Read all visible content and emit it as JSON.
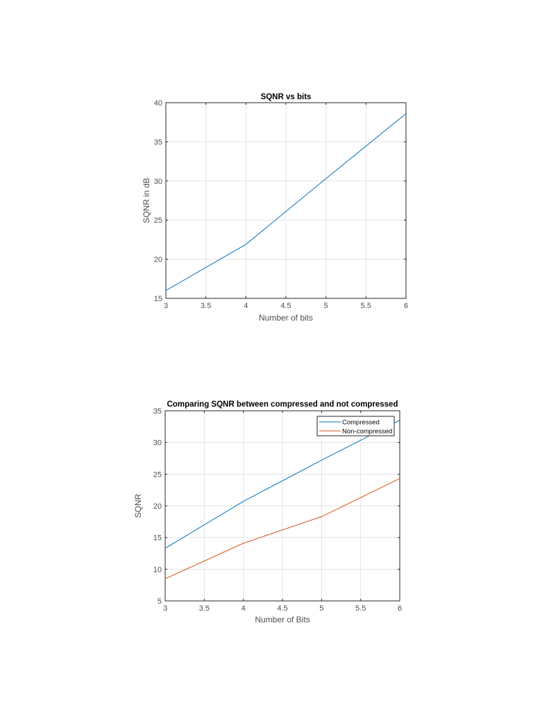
{
  "chart_data": [
    {
      "type": "line",
      "title": "SQNR vs bits",
      "xlabel": "Number of bits",
      "ylabel": "SQNR in dB",
      "xlim": [
        3,
        6
      ],
      "ylim": [
        15,
        40
      ],
      "xticks": [
        "3",
        "3.5",
        "4",
        "4.5",
        "5",
        "5.5",
        "6"
      ],
      "yticks": [
        "15",
        "20",
        "25",
        "30",
        "35",
        "40"
      ],
      "grid": true,
      "x": [
        3,
        4,
        5,
        6
      ],
      "series": [
        {
          "name": "SQNR",
          "color": "#0072BD",
          "values": [
            16.0,
            21.9,
            30.3,
            38.6
          ]
        }
      ]
    },
    {
      "type": "line",
      "title": "Comparing SQNR between compressed and not compressed",
      "xlabel": "Number of Bits",
      "ylabel": "SQNR",
      "xlim": [
        3,
        6
      ],
      "ylim": [
        5,
        35
      ],
      "xticks": [
        "3",
        "3.5",
        "4",
        "4.5",
        "5",
        "5.5",
        "6"
      ],
      "yticks": [
        "5",
        "10",
        "15",
        "20",
        "25",
        "30",
        "35"
      ],
      "grid": true,
      "legend_position": "northeast",
      "x": [
        3,
        4,
        5,
        6
      ],
      "series": [
        {
          "name": "Compressed",
          "color": "#0072BD",
          "values": [
            13.3,
            20.7,
            27.2,
            33.5
          ]
        },
        {
          "name": "Non-compressed",
          "color": "#D95319",
          "values": [
            8.5,
            14.1,
            18.3,
            24.3
          ]
        }
      ]
    }
  ]
}
